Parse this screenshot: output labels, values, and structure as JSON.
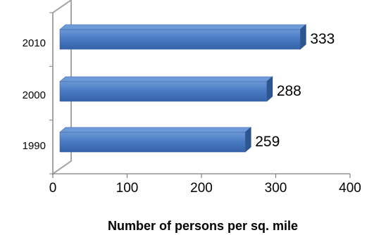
{
  "chart_data": {
    "type": "bar",
    "orientation": "horizontal",
    "style": "3d",
    "categories": [
      "2010",
      "2000",
      "1990"
    ],
    "values": [
      333,
      288,
      259
    ],
    "data_labels": [
      "333",
      "288",
      "259"
    ],
    "x_ticks": [
      "0",
      "100",
      "200",
      "300",
      "400"
    ],
    "xlim": [
      0,
      400
    ],
    "title": "",
    "xlabel": "Number of persons per sq. mile",
    "ylabel": "",
    "grid": false,
    "legend": "none",
    "bar_color": "#4a7cc4",
    "bar_top_color": "#6f9ad8",
    "bar_side_color": "#2e568e",
    "wall_color": "#a6a6a6"
  }
}
